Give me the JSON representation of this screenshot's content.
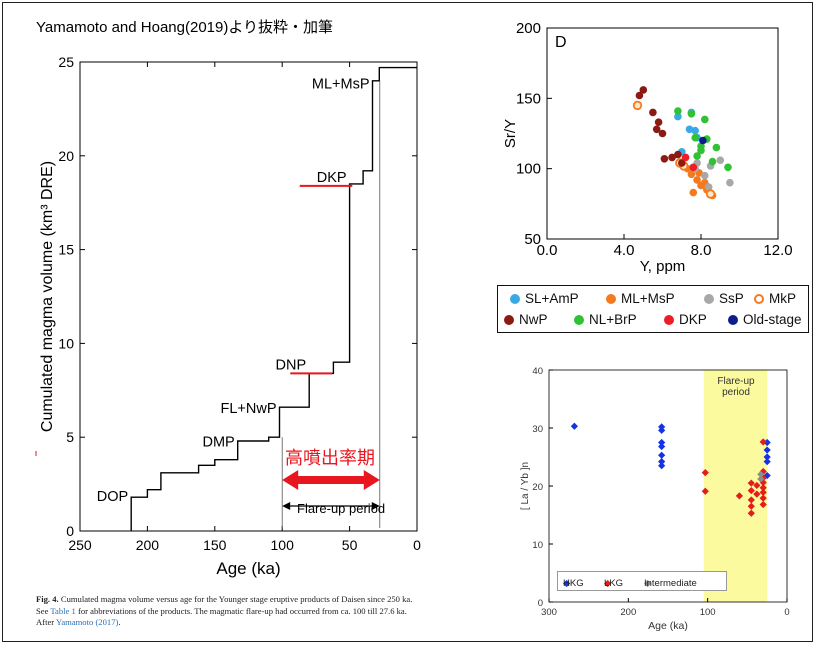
{
  "page": {
    "credit": "Yamamoto and Hoang(2019)より抜粋・加筆",
    "caption": {
      "fig_label": "Fig. 4.",
      "text_1": " Cumulated magma volume versus age for the Younger stage eruptive products of Daisen since 250 ka. See ",
      "table_ref": "Table 1",
      "text_2": " for abbreviations of the products. The magmatic flare-up had occurred from ca. 100 till 27.6 ka. After ",
      "ref": "Yamamoto (2017)",
      "text_3": "."
    }
  },
  "chart_data": [
    {
      "type": "line",
      "xlabel": "Age (ka)",
      "ylabel": "Cumulated magma volume (km³ DRE)",
      "xlim": [
        250,
        0
      ],
      "ylim": [
        0,
        25
      ],
      "xticks": [
        250,
        200,
        150,
        100,
        50,
        0
      ],
      "yticks": [
        0,
        5,
        10,
        15,
        20,
        25
      ],
      "step_points": [
        [
          212,
          0
        ],
        [
          212,
          1.8
        ],
        [
          200,
          1.8
        ],
        [
          200,
          2.2
        ],
        [
          190,
          2.2
        ],
        [
          190,
          3.1
        ],
        [
          162,
          3.1
        ],
        [
          162,
          3.5
        ],
        [
          150,
          3.5
        ],
        [
          150,
          3.8
        ],
        [
          133,
          3.8
        ],
        [
          133,
          4.8
        ],
        [
          110,
          4.8
        ],
        [
          110,
          5.0
        ],
        [
          102,
          5.0
        ],
        [
          102,
          6.6
        ],
        [
          80,
          6.6
        ],
        [
          80,
          8.4
        ],
        [
          62,
          8.4
        ],
        [
          62,
          9.0
        ],
        [
          50,
          9.0
        ],
        [
          50,
          18.5
        ],
        [
          40,
          18.5
        ],
        [
          40,
          19.2
        ],
        [
          33,
          19.2
        ],
        [
          33,
          24.0
        ],
        [
          28,
          24.0
        ],
        [
          28,
          24.7
        ],
        [
          0,
          24.7
        ]
      ],
      "annotations": [
        {
          "text": "DOP",
          "x": 212,
          "y": 1.6
        },
        {
          "text": "DMP",
          "x": 133,
          "y": 4.5
        },
        {
          "text": "FL+NwP",
          "x": 102,
          "y": 6.3
        },
        {
          "text": "DNP",
          "x": 80,
          "y": 8.6
        },
        {
          "text": "DKP",
          "x": 50,
          "y": 18.6
        },
        {
          "text": "ML+MsP",
          "x": 33,
          "y": 23.6
        }
      ],
      "highlight_lines": [
        {
          "label": "DNP",
          "x1": 94,
          "x2": 63,
          "y": 8.4
        },
        {
          "label": "DKP",
          "x1": 87,
          "x2": 48,
          "y": 18.4
        }
      ],
      "flare_up": {
        "label": "Flare-up period",
        "from": 100,
        "to": 27.6,
        "jp_label": "高噴出率期"
      }
    },
    {
      "type": "scatter",
      "panel_label": "D",
      "xlabel": "Y, ppm",
      "ylabel": "Sr/Y",
      "xlim": [
        0,
        12
      ],
      "ylim": [
        50,
        200
      ],
      "xticks": [
        "0.0",
        "4.0",
        "8.0",
        "12.0"
      ],
      "yticks": [
        "50",
        "100",
        "150",
        "200"
      ],
      "legend": [
        {
          "name": "SL+AmP",
          "color": "#39a9e6",
          "fill": "solid"
        },
        {
          "name": "ML+MsP",
          "color": "#f47a20",
          "fill": "solid"
        },
        {
          "name": "SsP",
          "color": "#a8a8a8",
          "fill": "solid"
        },
        {
          "name": "MkP",
          "color": "#f47a20",
          "fill": "ring"
        },
        {
          "name": "NwP",
          "color": "#8b1a12",
          "fill": "solid"
        },
        {
          "name": "NL+BrP",
          "color": "#2fc234",
          "fill": "solid"
        },
        {
          "name": "DKP",
          "color": "#ee1c25",
          "fill": "solid"
        },
        {
          "name": "Old-stage",
          "color": "#0c1d8c",
          "fill": "solid"
        }
      ],
      "series": [
        {
          "name": "SL+AmP",
          "points": [
            [
              6.8,
              137
            ],
            [
              7.5,
              140
            ],
            [
              7.4,
              128
            ],
            [
              7.7,
              127
            ],
            [
              7.0,
              112
            ],
            [
              7.8,
              122
            ]
          ]
        },
        {
          "name": "ML+MsP",
          "points": [
            [
              7.5,
              96
            ],
            [
              7.8,
              92
            ],
            [
              8.0,
              88
            ],
            [
              7.6,
              83
            ],
            [
              8.3,
              85
            ],
            [
              8.5,
              82
            ],
            [
              8.2,
              90
            ],
            [
              7.9,
              97
            ],
            [
              7.3,
              100
            ],
            [
              8.6,
              81
            ]
          ]
        },
        {
          "name": "SsP",
          "points": [
            [
              7.8,
              104
            ],
            [
              8.5,
              102
            ],
            [
              9.0,
              106
            ],
            [
              9.5,
              90
            ],
            [
              8.2,
              95
            ],
            [
              8.4,
              87
            ],
            [
              7.7,
              100
            ]
          ]
        },
        {
          "name": "MkP",
          "points": [
            [
              4.7,
              145
            ],
            [
              7.1,
              102
            ],
            [
              6.9,
              104
            ],
            [
              8.5,
              82
            ]
          ]
        },
        {
          "name": "NwP",
          "points": [
            [
              4.8,
              152
            ],
            [
              5.0,
              156
            ],
            [
              5.5,
              140
            ],
            [
              5.8,
              133
            ],
            [
              6.0,
              125
            ],
            [
              5.7,
              128
            ],
            [
              6.1,
              107
            ],
            [
              6.5,
              108
            ],
            [
              6.8,
              110
            ],
            [
              7.0,
              104
            ]
          ]
        },
        {
          "name": "NL+BrP",
          "points": [
            [
              6.8,
              141
            ],
            [
              7.5,
              139
            ],
            [
              8.2,
              135
            ],
            [
              7.7,
              122
            ],
            [
              8.3,
              121
            ],
            [
              8.0,
              113
            ],
            [
              8.8,
              115
            ],
            [
              7.8,
              109
            ],
            [
              8.6,
              105
            ],
            [
              9.4,
              101
            ],
            [
              8.0,
              116
            ]
          ]
        },
        {
          "name": "DKP",
          "points": [
            [
              7.2,
              108
            ],
            [
              7.6,
              101
            ]
          ]
        },
        {
          "name": "Old-stage",
          "points": [
            [
              8.1,
              120
            ]
          ]
        }
      ]
    },
    {
      "type": "scatter",
      "xlabel": "Age (ka)",
      "ylabel": "[ La / Yb ]n",
      "xlim": [
        300,
        0
      ],
      "ylim": [
        0,
        40
      ],
      "xticks": [
        300,
        200,
        100,
        0
      ],
      "yticks": [
        0,
        10,
        20,
        30,
        40
      ],
      "flare_up": {
        "label": "Flare-up period",
        "from": 105,
        "to": 25
      },
      "series": [
        {
          "name": "HKG",
          "color": "#1432e6",
          "points": [
            [
              268,
              30.3
            ],
            [
              158,
              30.2
            ],
            [
              158,
              29.6
            ],
            [
              158,
              27.5
            ],
            [
              158,
              26.8
            ],
            [
              158,
              25.3
            ],
            [
              158,
              24.2
            ],
            [
              158,
              23.5
            ],
            [
              25,
              27.5
            ],
            [
              25,
              26.2
            ],
            [
              25,
              25
            ],
            [
              25,
              24.2
            ],
            [
              25,
              21.8
            ]
          ]
        },
        {
          "name": "LKG",
          "color": "#e31c1c",
          "points": [
            [
              103,
              22.3
            ],
            [
              103,
              19.1
            ],
            [
              60,
              18.3
            ],
            [
              45,
              20.5
            ],
            [
              45,
              19.2
            ],
            [
              45,
              17.6
            ],
            [
              45,
              16.5
            ],
            [
              45,
              15.3
            ],
            [
              30,
              27.6
            ],
            [
              30,
              22.5
            ],
            [
              30,
              21.4
            ],
            [
              30,
              20.6
            ],
            [
              30,
              19.7
            ],
            [
              30,
              18.9
            ],
            [
              30,
              17.9
            ],
            [
              30,
              16.8
            ],
            [
              38,
              20.1
            ],
            [
              38,
              18.6
            ]
          ]
        },
        {
          "name": "Intermediate",
          "color": "#8c8c8c",
          "points": [
            [
              33,
              22.0
            ],
            [
              33,
              21.2
            ]
          ]
        }
      ]
    }
  ]
}
